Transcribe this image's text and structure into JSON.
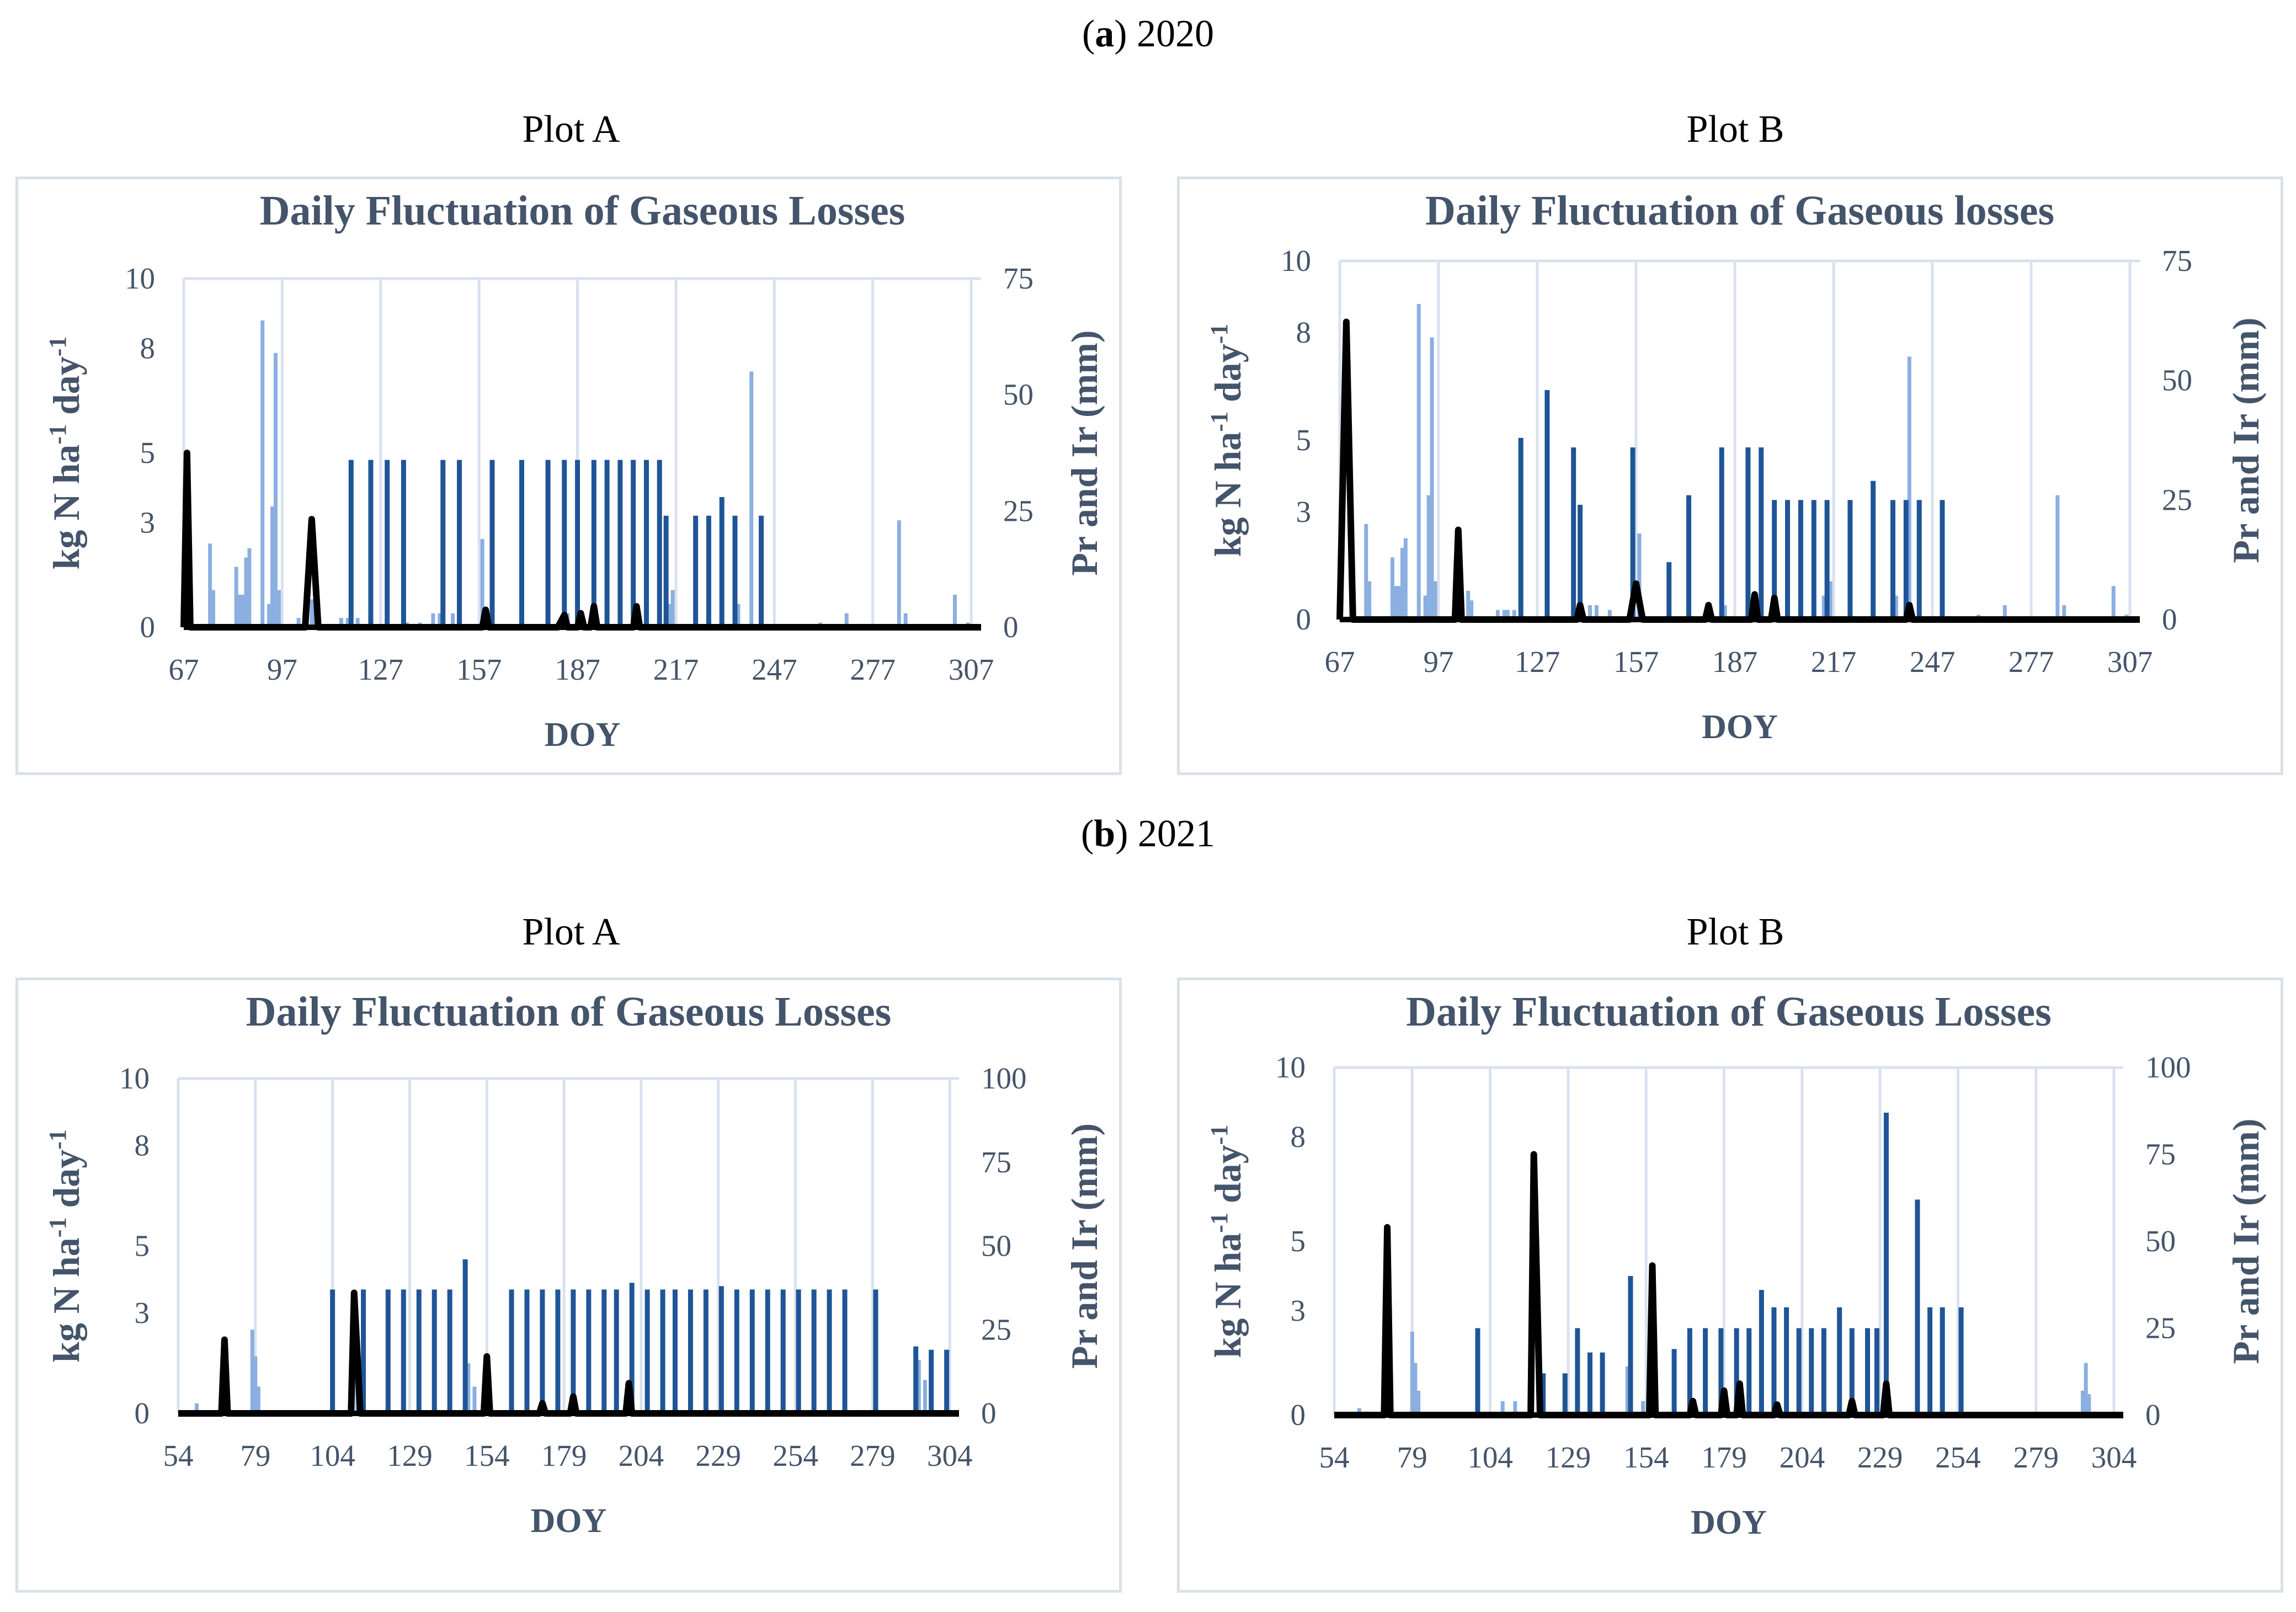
{
  "sections": [
    {
      "letter": "a",
      "year": "2020"
    },
    {
      "letter": "b",
      "year": "2021"
    }
  ],
  "plot_labels": [
    "Plot A",
    "Plot B",
    "Plot A",
    "Plot B"
  ],
  "colors": {
    "precip": "#8aafe0",
    "irrig": "#1f5597",
    "loss": "#000000",
    "axis_text": "#44546a",
    "grid": "#d9e1ef"
  },
  "chart_data": [
    {
      "type": "bar+line",
      "title": "Daily Fluctuation of Gaseous Losses",
      "xlabel": "DOY",
      "ylabel": "kg N ha-1 day-1",
      "y2label": "Pr and Ir (mm)",
      "xticks": [
        67,
        97,
        127,
        157,
        187,
        217,
        247,
        277,
        307
      ],
      "xlim": [
        67,
        310
      ],
      "yticks": [
        0,
        3,
        5,
        8,
        10
      ],
      "ylim": [
        0,
        10
      ],
      "y2ticks": [
        0,
        25,
        50,
        75
      ],
      "y2lim": [
        0,
        75
      ],
      "precip": [
        [
          75,
          18
        ],
        [
          76,
          8
        ],
        [
          83,
          13
        ],
        [
          84,
          7
        ],
        [
          85,
          7
        ],
        [
          86,
          15
        ],
        [
          87,
          17
        ],
        [
          91,
          66
        ],
        [
          93,
          5
        ],
        [
          94,
          26
        ],
        [
          95,
          59
        ],
        [
          96,
          8
        ],
        [
          102,
          2
        ],
        [
          106,
          6
        ],
        [
          107,
          4
        ],
        [
          115,
          2
        ],
        [
          117,
          2
        ],
        [
          118,
          2
        ],
        [
          120,
          2
        ],
        [
          135,
          1
        ],
        [
          139,
          1
        ],
        [
          143,
          3
        ],
        [
          145,
          3
        ],
        [
          149,
          3
        ],
        [
          158,
          19
        ],
        [
          184,
          3
        ],
        [
          214,
          4
        ],
        [
          215,
          5
        ],
        [
          216,
          8
        ],
        [
          236,
          5
        ],
        [
          240,
          55
        ],
        [
          261,
          1
        ],
        [
          269,
          3
        ],
        [
          285,
          23
        ],
        [
          287,
          3
        ],
        [
          302,
          7
        ],
        [
          306,
          1
        ]
      ],
      "irrig": [
        [
          118,
          36
        ],
        [
          124,
          36
        ],
        [
          129,
          36
        ],
        [
          134,
          36
        ],
        [
          146,
          36
        ],
        [
          151,
          36
        ],
        [
          161,
          36
        ],
        [
          170,
          36
        ],
        [
          178,
          36
        ],
        [
          183,
          36
        ],
        [
          187,
          36
        ],
        [
          192,
          36
        ],
        [
          196,
          36
        ],
        [
          200,
          36
        ],
        [
          204,
          36
        ],
        [
          208,
          36
        ],
        [
          212,
          36
        ],
        [
          214,
          24
        ],
        [
          223,
          24
        ],
        [
          227,
          24
        ],
        [
          231,
          28
        ],
        [
          235,
          24
        ],
        [
          243,
          24
        ]
      ],
      "loss": [
        [
          67,
          0
        ],
        [
          68,
          5
        ],
        [
          69,
          0
        ],
        [
          104,
          0
        ],
        [
          106,
          3.1
        ],
        [
          108,
          0
        ],
        [
          158,
          0
        ],
        [
          159,
          0.5
        ],
        [
          160,
          0
        ],
        [
          181,
          0
        ],
        [
          183,
          0.35
        ],
        [
          184,
          0
        ],
        [
          187,
          0
        ],
        [
          188,
          0.4
        ],
        [
          189,
          0
        ],
        [
          191,
          0
        ],
        [
          192,
          0.6
        ],
        [
          193,
          0
        ],
        [
          204,
          0
        ],
        [
          205,
          0.6
        ],
        [
          206,
          0
        ],
        [
          310,
          0
        ]
      ]
    },
    {
      "type": "bar+line",
      "title": "Daily Fluctuation of Gaseous losses",
      "xlabel": "DOY",
      "ylabel": "kg N ha-1 day-1",
      "y2label": "Pr and Ir (mm)",
      "xticks": [
        67,
        97,
        127,
        157,
        187,
        217,
        247,
        277,
        307
      ],
      "xlim": [
        67,
        310
      ],
      "yticks": [
        0,
        3,
        5,
        8,
        10
      ],
      "ylim": [
        0,
        10
      ],
      "y2ticks": [
        0,
        25,
        50,
        75
      ],
      "y2lim": [
        0,
        75
      ],
      "precip": [
        [
          75,
          20
        ],
        [
          76,
          8
        ],
        [
          83,
          13
        ],
        [
          84,
          7
        ],
        [
          85,
          7
        ],
        [
          86,
          15
        ],
        [
          87,
          17
        ],
        [
          91,
          66
        ],
        [
          93,
          5
        ],
        [
          94,
          26
        ],
        [
          95,
          59
        ],
        [
          96,
          8
        ],
        [
          102,
          2
        ],
        [
          106,
          6
        ],
        [
          107,
          4
        ],
        [
          115,
          2
        ],
        [
          117,
          2
        ],
        [
          118,
          2
        ],
        [
          120,
          2
        ],
        [
          143,
          3
        ],
        [
          145,
          3
        ],
        [
          149,
          2
        ],
        [
          158,
          18
        ],
        [
          184,
          3
        ],
        [
          214,
          5
        ],
        [
          215,
          7
        ],
        [
          216,
          8
        ],
        [
          236,
          5
        ],
        [
          240,
          55
        ],
        [
          261,
          1
        ],
        [
          269,
          3
        ],
        [
          285,
          26
        ],
        [
          287,
          3
        ],
        [
          302,
          7
        ],
        [
          306,
          1
        ]
      ],
      "irrig": [
        [
          122,
          38
        ],
        [
          130,
          48
        ],
        [
          138,
          36
        ],
        [
          140,
          24
        ],
        [
          156,
          36
        ],
        [
          167,
          12
        ],
        [
          173,
          26
        ],
        [
          183,
          36
        ],
        [
          191,
          36
        ],
        [
          195,
          36
        ],
        [
          199,
          25
        ],
        [
          203,
          25
        ],
        [
          207,
          25
        ],
        [
          211,
          25
        ],
        [
          215,
          25
        ],
        [
          222,
          25
        ],
        [
          229,
          29
        ],
        [
          235,
          25
        ],
        [
          239,
          25
        ],
        [
          243,
          25
        ],
        [
          250,
          25
        ]
      ],
      "loss": [
        [
          67,
          0
        ],
        [
          69,
          8.3
        ],
        [
          71,
          0
        ],
        [
          102,
          0
        ],
        [
          103,
          2.5
        ],
        [
          104,
          0
        ],
        [
          139,
          0
        ],
        [
          140,
          0.4
        ],
        [
          141,
          0
        ],
        [
          155,
          0
        ],
        [
          157,
          1.0
        ],
        [
          159,
          0
        ],
        [
          178,
          0
        ],
        [
          179,
          0.4
        ],
        [
          180,
          0
        ],
        [
          192,
          0
        ],
        [
          193,
          0.7
        ],
        [
          194,
          0
        ],
        [
          198,
          0
        ],
        [
          199,
          0.6
        ],
        [
          200,
          0
        ],
        [
          239,
          0
        ],
        [
          240,
          0.4
        ],
        [
          241,
          0
        ],
        [
          310,
          0
        ]
      ]
    },
    {
      "type": "bar+line",
      "title": "Daily Fluctuation of Gaseous Losses",
      "xlabel": "DOY",
      "ylabel": "kg N ha-1 day-1",
      "y2label": "Pr and Ir (mm)",
      "xticks": [
        54,
        79,
        104,
        129,
        154,
        179,
        204,
        229,
        254,
        279,
        304
      ],
      "xlim": [
        54,
        307
      ],
      "yticks": [
        0,
        3,
        5,
        8,
        10
      ],
      "ylim": [
        0,
        10
      ],
      "y2ticks": [
        0,
        25,
        50,
        75,
        100
      ],
      "y2lim": [
        0,
        100
      ],
      "precip": [
        [
          60,
          3
        ],
        [
          78,
          25
        ],
        [
          79,
          17
        ],
        [
          80,
          8
        ],
        [
          112,
          15
        ],
        [
          113,
          4
        ],
        [
          137,
          5
        ],
        [
          147,
          15
        ],
        [
          148,
          15
        ],
        [
          150,
          8
        ],
        [
          294,
          16
        ],
        [
          296,
          10
        ],
        [
          298,
          18
        ]
      ],
      "irrig": [
        [
          104,
          37
        ],
        [
          114,
          37
        ],
        [
          122,
          37
        ],
        [
          127,
          37
        ],
        [
          132,
          37
        ],
        [
          137,
          37
        ],
        [
          142,
          37
        ],
        [
          147,
          46
        ],
        [
          162,
          37
        ],
        [
          167,
          37
        ],
        [
          172,
          37
        ],
        [
          177,
          37
        ],
        [
          182,
          37
        ],
        [
          187,
          37
        ],
        [
          192,
          37
        ],
        [
          196,
          37
        ],
        [
          201,
          39
        ],
        [
          206,
          37
        ],
        [
          211,
          37
        ],
        [
          215,
          37
        ],
        [
          220,
          37
        ],
        [
          225,
          37
        ],
        [
          230,
          38
        ],
        [
          235,
          37
        ],
        [
          240,
          37
        ],
        [
          245,
          37
        ],
        [
          250,
          37
        ],
        [
          255,
          37
        ],
        [
          260,
          37
        ],
        [
          265,
          37
        ],
        [
          270,
          37
        ],
        [
          280,
          37
        ],
        [
          293,
          20
        ],
        [
          298,
          19
        ],
        [
          303,
          19
        ]
      ],
      "loss": [
        [
          54,
          0
        ],
        [
          68,
          0
        ],
        [
          69,
          2.2
        ],
        [
          70,
          0
        ],
        [
          110,
          0
        ],
        [
          111,
          3.6
        ],
        [
          113,
          0
        ],
        [
          153,
          0
        ],
        [
          154,
          1.7
        ],
        [
          155,
          0
        ],
        [
          171,
          0
        ],
        [
          172,
          0.3
        ],
        [
          173,
          0
        ],
        [
          181,
          0
        ],
        [
          182,
          0.5
        ],
        [
          183,
          0
        ],
        [
          199,
          0
        ],
        [
          200,
          0.9
        ],
        [
          201,
          0
        ],
        [
          307,
          0
        ]
      ]
    },
    {
      "type": "bar+line",
      "title": "Daily Fluctuation of Gaseous Losses",
      "xlabel": "DOY",
      "ylabel": "kg N ha-1 day-1",
      "y2label": "Pr and Ir (mm)",
      "xticks": [
        54,
        79,
        104,
        129,
        154,
        179,
        204,
        229,
        254,
        279,
        304
      ],
      "xlim": [
        54,
        307
      ],
      "yticks": [
        0,
        3,
        5,
        8,
        10
      ],
      "ylim": [
        0,
        10
      ],
      "y2ticks": [
        0,
        25,
        50,
        75,
        100
      ],
      "y2lim": [
        0,
        100
      ],
      "precip": [
        [
          62,
          2
        ],
        [
          79,
          24
        ],
        [
          80,
          15
        ],
        [
          81,
          7
        ],
        [
          108,
          4
        ],
        [
          112,
          4
        ],
        [
          148,
          14
        ],
        [
          149,
          8
        ],
        [
          153,
          4
        ],
        [
          294,
          7
        ],
        [
          295,
          15
        ],
        [
          296,
          6
        ]
      ],
      "irrig": [
        [
          100,
          25
        ],
        [
          121,
          12
        ],
        [
          128,
          12
        ],
        [
          132,
          25
        ],
        [
          136,
          18
        ],
        [
          140,
          18
        ],
        [
          149,
          40
        ],
        [
          163,
          19
        ],
        [
          168,
          25
        ],
        [
          173,
          25
        ],
        [
          178,
          25
        ],
        [
          183,
          25
        ],
        [
          187,
          25
        ],
        [
          191,
          36
        ],
        [
          195,
          31
        ],
        [
          199,
          31
        ],
        [
          203,
          25
        ],
        [
          207,
          25
        ],
        [
          211,
          25
        ],
        [
          216,
          31
        ],
        [
          220,
          25
        ],
        [
          225,
          25
        ],
        [
          228,
          25
        ],
        [
          231,
          87
        ],
        [
          241,
          62
        ],
        [
          245,
          31
        ],
        [
          249,
          31
        ],
        [
          255,
          31
        ]
      ],
      "loss": [
        [
          54,
          0
        ],
        [
          70,
          0
        ],
        [
          71,
          5.4
        ],
        [
          72,
          0
        ],
        [
          117,
          0
        ],
        [
          118,
          7.5
        ],
        [
          120,
          0
        ],
        [
          155,
          0
        ],
        [
          156,
          4.3
        ],
        [
          157,
          0
        ],
        [
          168,
          0
        ],
        [
          169,
          0.4
        ],
        [
          170,
          0
        ],
        [
          178,
          0
        ],
        [
          179,
          0.7
        ],
        [
          180,
          0
        ],
        [
          183,
          0
        ],
        [
          184,
          0.9
        ],
        [
          185,
          0
        ],
        [
          195,
          0
        ],
        [
          196,
          0.3
        ],
        [
          197,
          0
        ],
        [
          219,
          0
        ],
        [
          220,
          0.4
        ],
        [
          221,
          0
        ],
        [
          230,
          0
        ],
        [
          231,
          0.9
        ],
        [
          232,
          0
        ],
        [
          307,
          0
        ]
      ]
    }
  ]
}
